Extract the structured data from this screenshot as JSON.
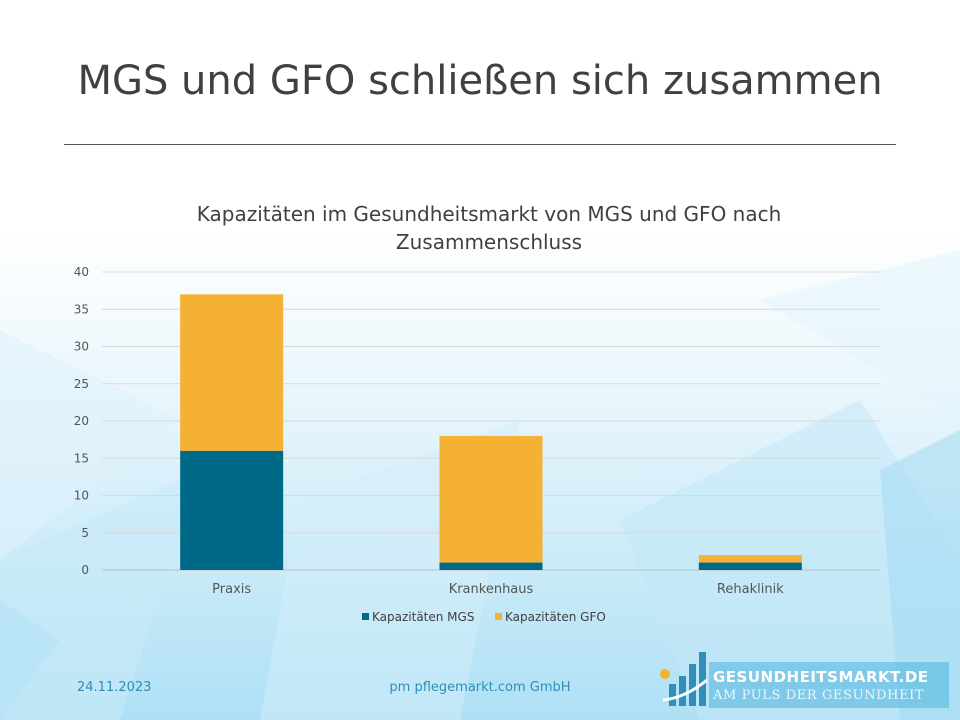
{
  "slide": {
    "title": "MGS und GFO schließen sich zusammen",
    "footer_date": "24.11.2023",
    "footer_company": "pm pflegemarkt.com GmbH"
  },
  "logo": {
    "name": "GESUNDHEITSMARKT.DE",
    "tagline": "AM PULS DER GESUNDHEIT"
  },
  "colors": {
    "mgs": "#006987",
    "gfo": "#f5b133",
    "accent": "#2f8fb8"
  },
  "chart_data": {
    "type": "bar",
    "stacked": true,
    "title_lines": [
      "Kapazitäten im Gesundheitsmarkt von MGS und GFO nach",
      "Zusammenschluss"
    ],
    "categories": [
      "Praxis",
      "Krankenhaus",
      "Rehaklinik"
    ],
    "series": [
      {
        "name": "Kapazitäten MGS",
        "values": [
          16,
          1,
          1
        ]
      },
      {
        "name": "Kapazitäten GFO",
        "values": [
          21,
          17,
          1
        ]
      }
    ],
    "ylim": [
      0,
      40
    ],
    "yticks": [
      0,
      5,
      10,
      15,
      20,
      25,
      30,
      35,
      40
    ],
    "grid": true,
    "legend": "bottom"
  }
}
